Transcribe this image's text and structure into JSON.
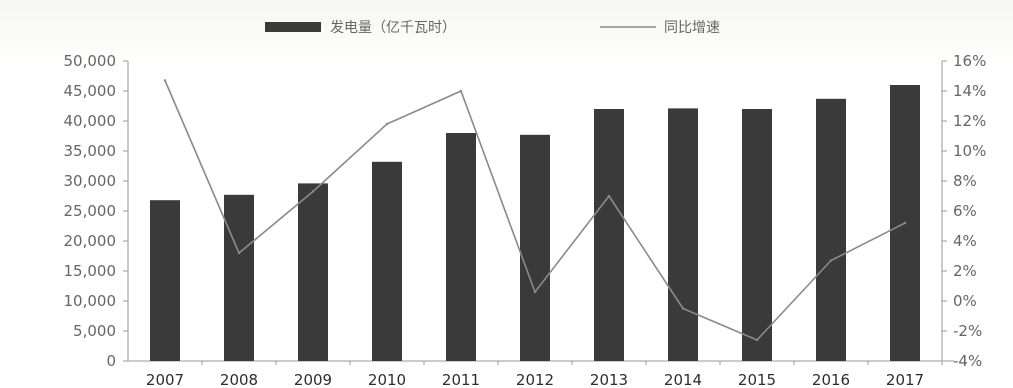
{
  "chart_data": {
    "type": "bar",
    "categories": [
      "2007",
      "2008",
      "2009",
      "2010",
      "2011",
      "2012",
      "2013",
      "2014",
      "2015",
      "2016",
      "2017"
    ],
    "series": [
      {
        "name": "发电量（亿千瓦时）",
        "type": "bar",
        "axis": "left",
        "values": [
          26800,
          27700,
          29600,
          33200,
          38000,
          37700,
          42000,
          42100,
          42000,
          43700,
          46000
        ]
      },
      {
        "name": "同比增速",
        "type": "line",
        "axis": "right",
        "values": [
          14.7,
          3.2,
          7.3,
          11.8,
          14.0,
          0.6,
          7.0,
          -0.5,
          -2.6,
          2.7,
          5.2
        ]
      }
    ],
    "y_left": {
      "ticks": [
        "50,000",
        "45,000",
        "40,000",
        "35,000",
        "30,000",
        "25,000",
        "20,000",
        "15,000",
        "10,000",
        "5,000",
        "0"
      ],
      "lim": [
        0,
        50000
      ]
    },
    "y_right": {
      "ticks": [
        "16%",
        "14%",
        "12%",
        "10%",
        "8%",
        "6%",
        "4%",
        "2%",
        "0%",
        "-2%",
        "-4%"
      ],
      "lim": [
        -4,
        16
      ],
      "unit": "%"
    },
    "legend_position": "top-center",
    "colors": {
      "bar": "#3a3a3a",
      "line": "#8a8a8a",
      "axis": "#9a9a9a",
      "tick_text": "#666666"
    }
  }
}
